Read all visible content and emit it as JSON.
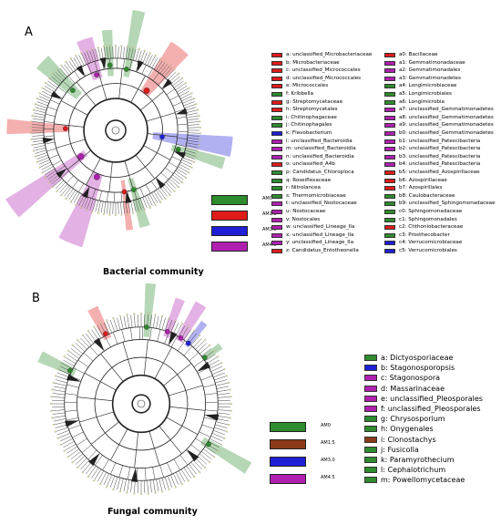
{
  "colors": {
    "AM0": "#2e8b2e",
    "AM1.5": "#e01b1b",
    "AM3.0": "#1f1fd6",
    "AM4.5": "#b020b0",
    "brown": "#8b3a1a"
  },
  "panel_a": {
    "letter": "A",
    "caption": "Bacterial community",
    "treatments": [
      {
        "label": "AM0",
        "color": "#2e8b2e"
      },
      {
        "label": "AM1.5",
        "color": "#e01b1b"
      },
      {
        "label": "AM3.0",
        "color": "#1f1fd6"
      },
      {
        "label": "AM4.5",
        "color": "#b020b0"
      }
    ],
    "legend_col1": [
      {
        "text": "a: unclassified_Microbacteriaceae",
        "color": "#e01b1b"
      },
      {
        "text": "b: Microbacteriaceae",
        "color": "#e01b1b"
      },
      {
        "text": "c: unclassified_Micrococcales",
        "color": "#e01b1b"
      },
      {
        "text": "d: unclassified_Micrococcales",
        "color": "#e01b1b"
      },
      {
        "text": "e: Micrococcales",
        "color": "#e01b1b"
      },
      {
        "text": "f: Kribbella",
        "color": "#2e8b2e"
      },
      {
        "text": "g: Streptomycetaceae",
        "color": "#e01b1b"
      },
      {
        "text": "h: Streptomycetales",
        "color": "#e01b1b"
      },
      {
        "text": "i: Chitinophagaceae",
        "color": "#2e8b2e"
      },
      {
        "text": "j: Chitinophagales",
        "color": "#2e8b2e"
      },
      {
        "text": "k: Flavobacterium",
        "color": "#1f1fd6"
      },
      {
        "text": "l: unclassified_Bacteroidia",
        "color": "#b020b0"
      },
      {
        "text": "m: unclassified_Bacteroidia",
        "color": "#b020b0"
      },
      {
        "text": "n: unclassified_Bacteroidia",
        "color": "#b020b0"
      },
      {
        "text": "o: unclassified_A4b",
        "color": "#e01b1b"
      },
      {
        "text": "p: Candidatus_Chloroploca",
        "color": "#2e8b2e"
      },
      {
        "text": "q: Roseiflexaceae",
        "color": "#2e8b2e"
      },
      {
        "text": "r: Nitrolancea",
        "color": "#2e8b2e"
      },
      {
        "text": "s: Thermomicrobiaceae",
        "color": "#2e8b2e"
      },
      {
        "text": "t: unclassified_Nostocaceae",
        "color": "#b020b0"
      },
      {
        "text": "u: Nostocaceae",
        "color": "#b020b0"
      },
      {
        "text": "v: Nostocales",
        "color": "#b020b0"
      },
      {
        "text": "w: unclassified_Lineage_IIa",
        "color": "#b020b0"
      },
      {
        "text": "x: unclassified_Lineage_IIa",
        "color": "#b020b0"
      },
      {
        "text": "y: unclassified_Lineage_IIa",
        "color": "#b020b0"
      },
      {
        "text": "z: Candidatus_Entotheonella",
        "color": "#e01b1b"
      }
    ],
    "legend_col2": [
      {
        "text": "a0: Bacillaceae",
        "color": "#e01b1b"
      },
      {
        "text": "a1: Gemmatimonadaceae",
        "color": "#b020b0"
      },
      {
        "text": "a2: Gemmatimonadales",
        "color": "#b020b0"
      },
      {
        "text": "a3: Gemmatimonadetes",
        "color": "#b020b0"
      },
      {
        "text": "a4: Longimicrobiaceae",
        "color": "#2e8b2e"
      },
      {
        "text": "a5: Longimicrobiales",
        "color": "#2e8b2e"
      },
      {
        "text": "a6: Longimicrobia",
        "color": "#2e8b2e"
      },
      {
        "text": "a7: unclassified_Gemmatimonadetes",
        "color": "#b020b0"
      },
      {
        "text": "a8: unclassified_Gemmatimonadetes",
        "color": "#b020b0"
      },
      {
        "text": "a9: unclassified_Gemmatimonadetes",
        "color": "#b020b0"
      },
      {
        "text": "b0: unclassified_Gemmatimonadetes",
        "color": "#b020b0"
      },
      {
        "text": "b1: unclassified_Patescibacteria",
        "color": "#b020b0"
      },
      {
        "text": "b2: unclassified_Patescibacteria",
        "color": "#b020b0"
      },
      {
        "text": "b3: unclassified_Patescibacteria",
        "color": "#b020b0"
      },
      {
        "text": "b4: unclassified_Patescibacteria",
        "color": "#b020b0"
      },
      {
        "text": "b5: unclassified_Azospirillaceae",
        "color": "#e01b1b"
      },
      {
        "text": "b6: Azospirillaceae",
        "color": "#e01b1b"
      },
      {
        "text": "b7: Azospirillales",
        "color": "#e01b1b"
      },
      {
        "text": "b8: Caulobacteraceae",
        "color": "#2e8b2e"
      },
      {
        "text": "b9: unclassified_Sphingomonadaceae",
        "color": "#2e8b2e"
      },
      {
        "text": "c0: Sphingomonadaceae",
        "color": "#2e8b2e"
      },
      {
        "text": "c1: Sphingomonadales",
        "color": "#2e8b2e"
      },
      {
        "text": "c2: Chthoniobacteraceae",
        "color": "#e01b1b"
      },
      {
        "text": "c3: Prosthecobacter",
        "color": "#2e8b2e"
      },
      {
        "text": "c4: Verrucomicrobiaceae",
        "color": "#1f1fd6"
      },
      {
        "text": "c5: Verrucomicrobiales",
        "color": "#1f1fd6"
      }
    ]
  },
  "panel_b": {
    "letter": "B",
    "caption": "Fungal community",
    "treatments": [
      {
        "label": "AM0",
        "color": "#2e8b2e"
      },
      {
        "label": "AM1.5",
        "color": "#8b3a1a"
      },
      {
        "label": "AM3.0",
        "color": "#1f1fd6"
      },
      {
        "label": "AM4.5",
        "color": "#b020b0"
      }
    ],
    "legend": [
      {
        "text": "a: Dictyosporiaceae",
        "color": "#2e8b2e"
      },
      {
        "text": "b: Stagonosporopsis",
        "color": "#1f1fd6"
      },
      {
        "text": "c: Stagonospora",
        "color": "#b020b0"
      },
      {
        "text": "d: Massarinaceae",
        "color": "#b020b0"
      },
      {
        "text": "e: unclassified_Pleosporales",
        "color": "#b020b0"
      },
      {
        "text": "f: unclassified_Pleosporales",
        "color": "#b020b0"
      },
      {
        "text": "g: Chrysosporium",
        "color": "#2e8b2e"
      },
      {
        "text": "h: Onygenales",
        "color": "#2e8b2e"
      },
      {
        "text": "i: Clonostachys",
        "color": "#8b3a1a"
      },
      {
        "text": "j: Fusicolla",
        "color": "#2e8b2e"
      },
      {
        "text": "k: Paramyrothecium",
        "color": "#2e8b2e"
      },
      {
        "text": "l: Cephalotrichum",
        "color": "#2e8b2e"
      },
      {
        "text": "m: Powellomycetaceae",
        "color": "#2e8b2e"
      }
    ]
  }
}
